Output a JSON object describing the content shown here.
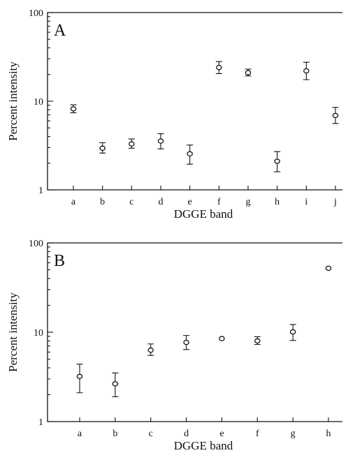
{
  "chart_data": [
    {
      "type": "scatter",
      "panel_label": "A",
      "xlabel": "DGGE band",
      "ylabel": "Percent intensity",
      "yscale": "log",
      "ylim": [
        1,
        100
      ],
      "yticks": [
        "1",
        "10",
        "100"
      ],
      "categories": [
        "a",
        "b",
        "c",
        "d",
        "e",
        "f",
        "g",
        "h",
        "i",
        "j"
      ],
      "values": [
        8.2,
        2.95,
        3.3,
        3.55,
        2.55,
        24,
        21,
        2.1,
        22,
        6.9
      ],
      "lower": [
        7.4,
        2.6,
        2.95,
        2.9,
        1.95,
        20.5,
        19.3,
        1.6,
        17.5,
        5.6
      ],
      "upper": [
        9.1,
        3.4,
        3.75,
        4.3,
        3.2,
        28,
        23,
        2.7,
        27.5,
        8.5
      ],
      "grid": false
    },
    {
      "type": "scatter",
      "panel_label": "B",
      "xlabel": "DGGE band",
      "ylabel": "Percent intensity",
      "yscale": "log",
      "ylim": [
        1,
        100
      ],
      "yticks": [
        "1",
        "10",
        "100"
      ],
      "categories": [
        "a",
        "b",
        "c",
        "d",
        "e",
        "f",
        "g",
        "h"
      ],
      "values": [
        3.2,
        2.65,
        6.3,
        7.7,
        8.5,
        8.0,
        10.1,
        52
      ],
      "lower": [
        2.1,
        1.9,
        5.5,
        6.4,
        8.5,
        7.3,
        8.1,
        52
      ],
      "upper": [
        4.4,
        3.5,
        7.4,
        9.2,
        8.5,
        8.9,
        12.2,
        52
      ],
      "grid": false
    }
  ]
}
